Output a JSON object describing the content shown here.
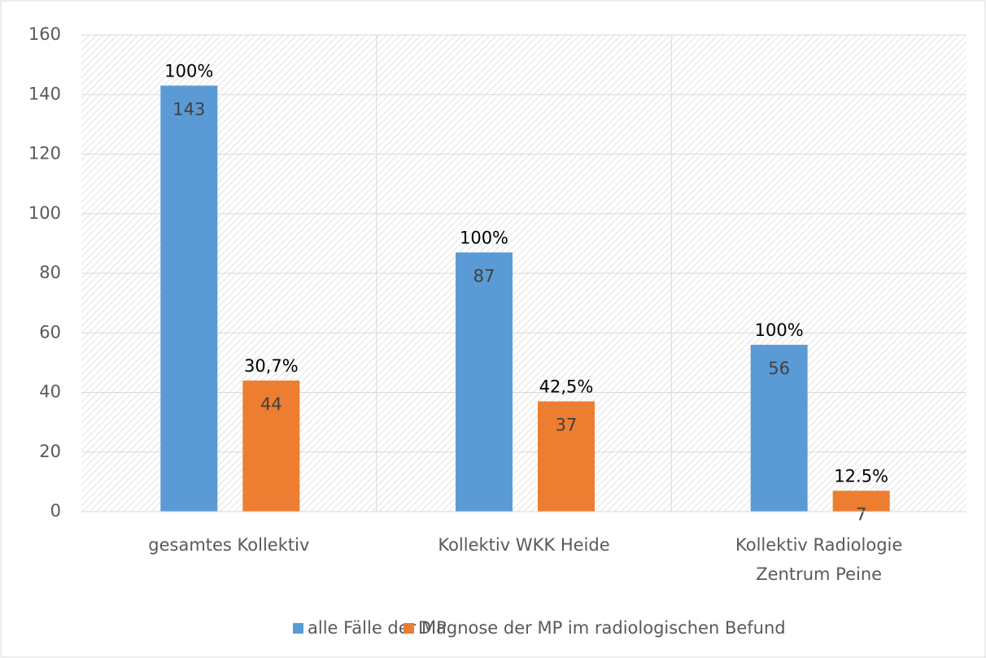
{
  "chart_data": {
    "type": "bar",
    "categories": [
      "gesamtes Kollektiv",
      "Kollektiv WKK Heide",
      "Kollektiv Radiologie Zentrum Peine"
    ],
    "series": [
      {
        "name": "alle Fälle der MP",
        "color": "#5b9bd5",
        "values": [
          143,
          87,
          56
        ],
        "annotations": [
          "100%",
          "100%",
          "100%"
        ]
      },
      {
        "name": "Diagnose der MP im radiologischen Befund",
        "color": "#ed7d31",
        "values": [
          44,
          37,
          7
        ],
        "annotations": [
          "30,7%",
          "42,5%",
          "12.5%"
        ]
      }
    ],
    "ylim": [
      0,
      160
    ],
    "yticks": [
      0,
      20,
      40,
      60,
      80,
      100,
      120,
      140,
      160
    ],
    "grid": true,
    "legend": "bottom"
  }
}
